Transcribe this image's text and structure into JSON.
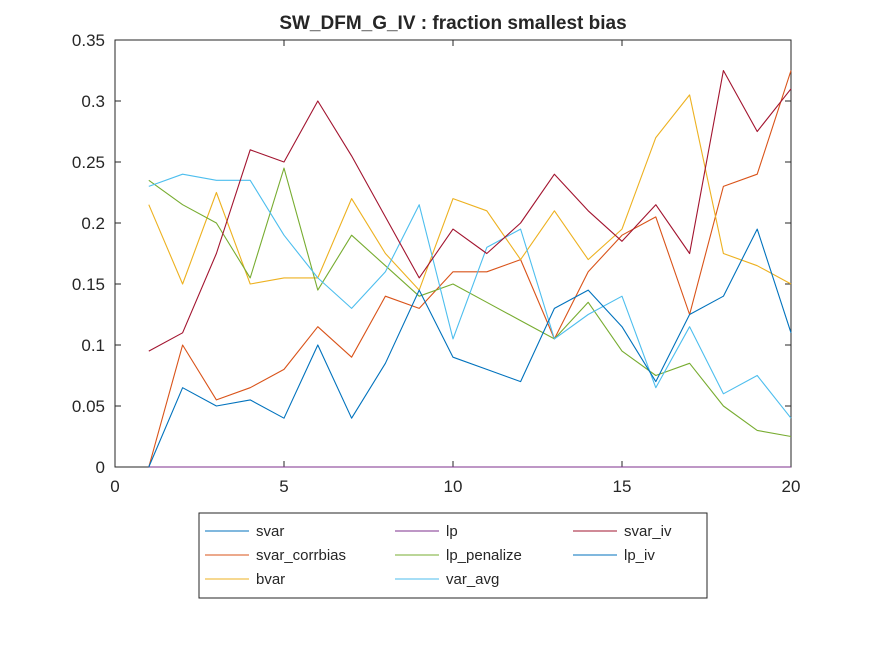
{
  "chart_data": {
    "type": "line",
    "title": "SW_DFM_G_IV : fraction smallest bias",
    "xlabel": "",
    "ylabel": "",
    "xlim": [
      0,
      20
    ],
    "ylim": [
      0,
      0.35
    ],
    "xticks": [
      0,
      5,
      10,
      15,
      20
    ],
    "yticks": [
      0,
      0.05,
      0.1,
      0.15,
      0.2,
      0.25,
      0.3,
      0.35
    ],
    "xtick_labels": [
      "0",
      "5",
      "10",
      "15",
      "20"
    ],
    "ytick_labels": [
      "0",
      "0.05",
      "0.1",
      "0.15",
      "0.2",
      "0.25",
      "0.3",
      "0.35"
    ],
    "grid": false,
    "legend_placement": "bottom-outside",
    "x": [
      1,
      2,
      3,
      4,
      5,
      6,
      7,
      8,
      9,
      10,
      11,
      12,
      13,
      14,
      15,
      16,
      17,
      18,
      19,
      20
    ],
    "series": [
      {
        "name": "svar",
        "color": "#0072BD",
        "values": [
          0,
          0,
          0,
          0,
          0,
          0,
          0,
          0,
          0,
          0,
          0,
          0,
          0,
          0,
          0,
          0,
          0,
          0,
          0,
          0
        ]
      },
      {
        "name": "svar_corrbias",
        "color": "#D95319",
        "values": [
          0,
          0.1,
          0.055,
          0.065,
          0.08,
          0.115,
          0.09,
          0.14,
          0.13,
          0.16,
          0.16,
          0.17,
          0.105,
          0.16,
          0.19,
          0.205,
          0.125,
          0.23,
          0.24,
          0.325
        ]
      },
      {
        "name": "bvar",
        "color": "#EDB120",
        "values": [
          0.215,
          0.15,
          0.225,
          0.15,
          0.155,
          0.155,
          0.22,
          0.175,
          0.145,
          0.22,
          0.21,
          0.17,
          0.21,
          0.17,
          0.195,
          0.27,
          0.305,
          0.175,
          0.165,
          0.15
        ]
      },
      {
        "name": "lp",
        "color": "#7E2F8E",
        "values": [
          0,
          0,
          0,
          0,
          0,
          0,
          0,
          0,
          0,
          0,
          0,
          0,
          0,
          0,
          0,
          0,
          0,
          0,
          0,
          0
        ]
      },
      {
        "name": "lp_penalize",
        "color": "#77AC30",
        "values": [
          0.235,
          0.215,
          0.2,
          0.155,
          0.245,
          0.145,
          0.19,
          0.165,
          0.14,
          0.15,
          0.135,
          0.12,
          0.105,
          0.135,
          0.095,
          0.075,
          0.085,
          0.05,
          0.03,
          0.025
        ]
      },
      {
        "name": "var_avg",
        "color": "#4DBEEE",
        "values": [
          0.23,
          0.24,
          0.235,
          0.235,
          0.19,
          0.155,
          0.13,
          0.16,
          0.215,
          0.105,
          0.18,
          0.195,
          0.105,
          0.125,
          0.14,
          0.065,
          0.115,
          0.06,
          0.075,
          0.04
        ]
      },
      {
        "name": "svar_iv",
        "color": "#A2142F",
        "values": [
          0.095,
          0.11,
          0.175,
          0.26,
          0.25,
          0.3,
          0.255,
          0.205,
          0.155,
          0.195,
          0.175,
          0.2,
          0.24,
          0.21,
          0.185,
          0.215,
          0.175,
          0.325,
          0.275,
          0.31
        ]
      },
      {
        "name": "lp_iv",
        "color": "#0072BD",
        "values": [
          0,
          0.065,
          0.05,
          0.055,
          0.04,
          0.1,
          0.04,
          0.085,
          0.145,
          0.09,
          0.08,
          0.07,
          0.13,
          0.145,
          0.115,
          0.07,
          0.125,
          0.14,
          0.195,
          0.11
        ]
      }
    ],
    "legend_columns": [
      [
        "svar",
        "svar_corrbias",
        "bvar"
      ],
      [
        "lp",
        "lp_penalize",
        "var_avg"
      ],
      [
        "svar_iv",
        "lp_iv"
      ]
    ]
  }
}
